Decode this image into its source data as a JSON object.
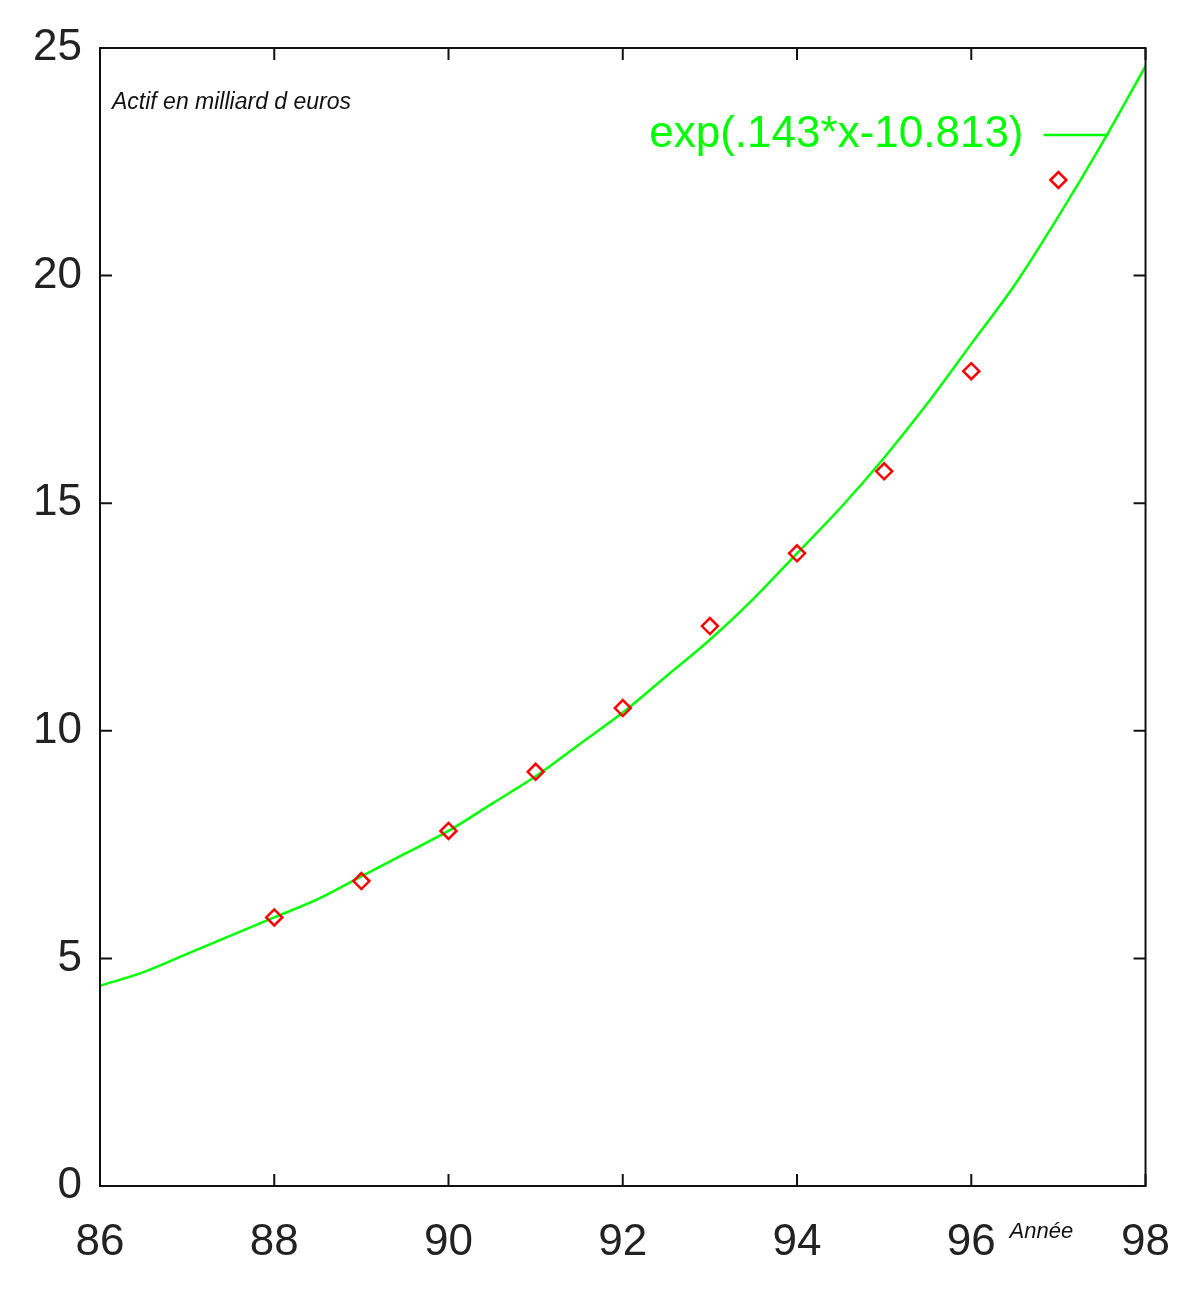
{
  "chart_data": {
    "type": "scatter",
    "xlabel": "Année",
    "ylabel": "Actif en milliard d euros",
    "xlim": [
      86,
      98
    ],
    "xticks": [
      86,
      88,
      90,
      92,
      94,
      96,
      98
    ],
    "ylim": [
      0,
      25
    ],
    "yticks": [
      0,
      5,
      10,
      15,
      20,
      25
    ],
    "legend": "top right",
    "series": [
      {
        "color": "#ff0000",
        "marker": "diamond",
        "x": [
          88,
          89,
          90,
          91,
          92,
          93,
          94,
          95,
          96,
          97
        ],
        "values": [
          5.9,
          6.7,
          7.8,
          9.1,
          10.5,
          12.3,
          13.9,
          15.7,
          17.9,
          22.1
        ]
      },
      {
        "type": "line",
        "name": "exp(.143*x-10.813)",
        "color": "#00ff00",
        "marker": "none",
        "x": [
          86,
          86.5,
          87,
          87.5,
          88,
          88.5,
          89,
          89.5,
          90,
          90.5,
          91,
          91.5,
          92,
          92.5,
          93,
          93.5,
          94,
          94.5,
          95,
          95.5,
          96,
          96.5,
          97,
          97.5,
          98
        ],
        "values": [
          4.4,
          4.7,
          5.1,
          5.5,
          5.9,
          6.3,
          6.8,
          7.3,
          7.8,
          8.4,
          9.0,
          9.7,
          10.4,
          11.2,
          12.0,
          12.9,
          13.9,
          14.9,
          16.0,
          17.2,
          18.5,
          19.8,
          21.3,
          22.9,
          24.6
        ]
      }
    ]
  }
}
